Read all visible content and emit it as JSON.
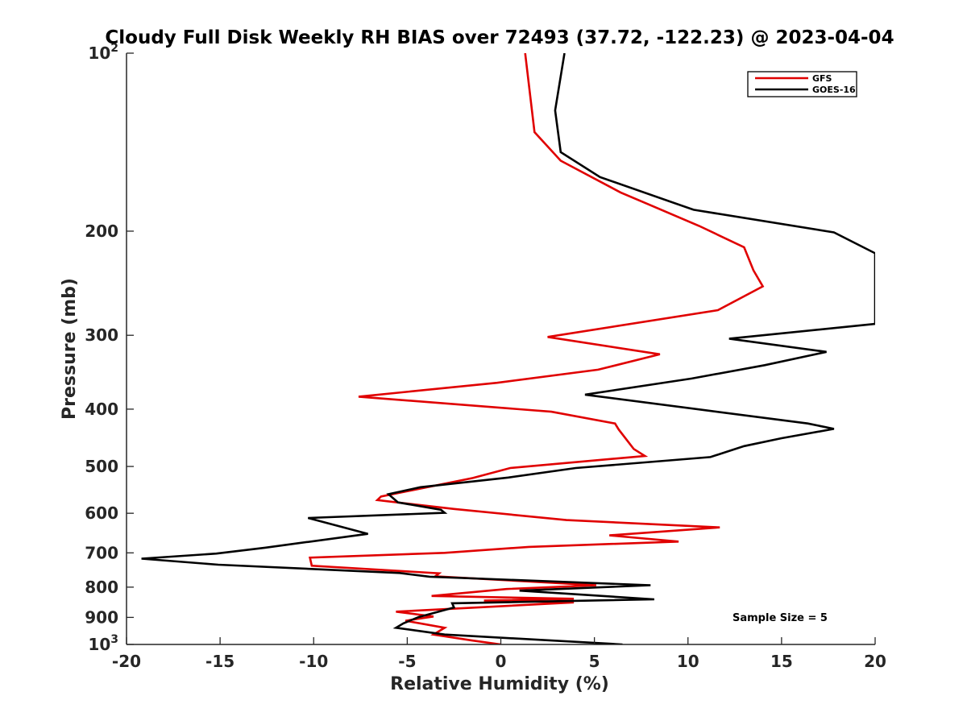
{
  "chart_data": {
    "type": "line",
    "title": "Cloudy Full Disk Weekly RH BIAS over 72493 (37.72, -122.23) @ 2023-04-04",
    "xlabel": "Relative Humidity (%)",
    "ylabel": "Pressure (mb)",
    "xlim": [
      -20,
      20
    ],
    "ylim": [
      1000,
      100
    ],
    "yscale": "log",
    "yaxis_reversed": true,
    "grid": false,
    "legend_position": "top-right",
    "annotation": "Sample Size = 5",
    "x_ticks": [
      {
        "value": -20,
        "label": "-20"
      },
      {
        "value": -15,
        "label": "-15"
      },
      {
        "value": -10,
        "label": "-10"
      },
      {
        "value": -5,
        "label": "-5"
      },
      {
        "value": 0,
        "label": "0"
      },
      {
        "value": 5,
        "label": "5"
      },
      {
        "value": 10,
        "label": "10"
      },
      {
        "value": 15,
        "label": "15"
      },
      {
        "value": 20,
        "label": "20"
      }
    ],
    "y_ticks": [
      {
        "value": 100,
        "base": "10",
        "exp": "2"
      },
      {
        "value": 200,
        "label": "200"
      },
      {
        "value": 300,
        "label": "300"
      },
      {
        "value": 400,
        "label": "400"
      },
      {
        "value": 500,
        "label": "500"
      },
      {
        "value": 600,
        "label": "600"
      },
      {
        "value": 700,
        "label": "700"
      },
      {
        "value": 800,
        "label": "800"
      },
      {
        "value": 900,
        "label": "900"
      },
      {
        "value": 1000,
        "base": "10",
        "exp": "3"
      }
    ],
    "series": [
      {
        "name": "GFS",
        "color": "#e00000",
        "points": [
          [
            1.3,
            100
          ],
          [
            1.8,
            136
          ],
          [
            3.2,
            152
          ],
          [
            6.4,
            172
          ],
          [
            10.6,
            196
          ],
          [
            13.0,
            213
          ],
          [
            13.5,
            233
          ],
          [
            14.0,
            248
          ],
          [
            11.6,
            272
          ],
          [
            2.5,
            302
          ],
          [
            8.5,
            323
          ],
          [
            5.2,
            343
          ],
          [
            -0.2,
            361
          ],
          [
            -7.6,
            381
          ],
          [
            2.7,
            404
          ],
          [
            6.1,
            423
          ],
          [
            6.3,
            433
          ],
          [
            7.1,
            467
          ],
          [
            7.7,
            480
          ],
          [
            0.5,
            503
          ],
          [
            -1.5,
            523
          ],
          [
            -6.4,
            562
          ],
          [
            -6.6,
            570
          ],
          [
            -2.5,
            590
          ],
          [
            3.5,
            616
          ],
          [
            11.7,
            634
          ],
          [
            5.8,
            654
          ],
          [
            9.5,
            670
          ],
          [
            1.5,
            684
          ],
          [
            -3.0,
            700
          ],
          [
            -10.2,
            713
          ],
          [
            -10.1,
            736
          ],
          [
            -3.3,
            758
          ],
          [
            -3.5,
            767
          ],
          [
            5.1,
            794
          ],
          [
            0.3,
            806
          ],
          [
            -3.7,
            828
          ],
          [
            3.9,
            837
          ],
          [
            -0.9,
            843
          ],
          [
            3.9,
            849
          ],
          [
            -5.6,
            880
          ],
          [
            -3.6,
            897
          ],
          [
            -5.1,
            912
          ],
          [
            -3.0,
            937
          ],
          [
            -3.6,
            962
          ],
          [
            -1.5,
            985
          ],
          [
            0.0,
            1000
          ]
        ]
      },
      {
        "name": "GOES-16",
        "color": "#000000",
        "points": [
          [
            3.4,
            100
          ],
          [
            2.9,
            125
          ],
          [
            3.2,
            147
          ],
          [
            5.3,
            162
          ],
          [
            10.3,
            184
          ],
          [
            17.8,
            201
          ],
          [
            20.0,
            218
          ],
          [
            20.0,
            287
          ],
          [
            12.2,
            304
          ],
          [
            17.4,
            320
          ],
          [
            14.1,
            337
          ],
          [
            10.2,
            355
          ],
          [
            4.5,
            378
          ],
          [
            16.4,
            423
          ],
          [
            17.8,
            432
          ],
          [
            15.0,
            448
          ],
          [
            13.0,
            462
          ],
          [
            11.2,
            482
          ],
          [
            4.0,
            503
          ],
          [
            0.4,
            522
          ],
          [
            -4.3,
            542
          ],
          [
            -6.0,
            557
          ],
          [
            -5.5,
            575
          ],
          [
            -3.2,
            592
          ],
          [
            -3.0,
            599
          ],
          [
            -10.3,
            611
          ],
          [
            -7.1,
            650
          ],
          [
            -12.6,
            686
          ],
          [
            -15.2,
            702
          ],
          [
            -19.2,
            716
          ],
          [
            -15.1,
            733
          ],
          [
            -5.4,
            757
          ],
          [
            -3.8,
            768
          ],
          [
            8.0,
            794
          ],
          [
            1.0,
            811
          ],
          [
            8.2,
            839
          ],
          [
            -2.6,
            852
          ],
          [
            -2.5,
            866
          ],
          [
            -4.4,
            899
          ],
          [
            -5.2,
            921
          ],
          [
            -5.6,
            937
          ],
          [
            -3.0,
            962
          ],
          [
            6.5,
            1000
          ]
        ]
      }
    ]
  }
}
